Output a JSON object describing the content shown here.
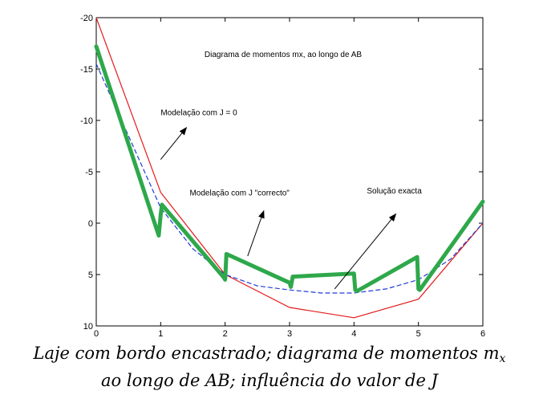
{
  "chart_data": {
    "type": "line",
    "title": "Diagrama de momentos mx, ao longo de AB",
    "xlim": [
      0,
      6
    ],
    "ylim": [
      -20,
      10
    ],
    "y_reversed": true,
    "grid": false,
    "xticks": [
      "0",
      "1",
      "2",
      "3",
      "4",
      "5",
      "6"
    ],
    "yticks": [
      "-20",
      "-15",
      "-10",
      "-5",
      "0",
      "5",
      "10"
    ],
    "series": [
      {
        "name": "Modelação com J = 0",
        "color": "#e41a1c",
        "style": "solid",
        "width": 1.2,
        "x": [
          0,
          1,
          2,
          3,
          4,
          5,
          6
        ],
        "y": [
          -20,
          -3,
          5,
          8.2,
          9.2,
          7.4,
          0
        ]
      },
      {
        "name": "Solução exacta",
        "color": "#1f3bd6",
        "style": "dashed",
        "width": 1.2,
        "x": [
          0,
          0.5,
          1,
          1.5,
          2,
          2.5,
          3,
          3.5,
          4,
          4.5,
          5,
          5.5,
          6
        ],
        "y": [
          -15.5,
          -8.5,
          -1.5,
          2.5,
          5,
          6.1,
          6.5,
          6.8,
          6.8,
          6.4,
          5.5,
          3.5,
          0
        ]
      },
      {
        "name": "Modelação com J \"correcto\"",
        "color": "#2ea84a",
        "style": "solid",
        "width": 5,
        "x": [
          0,
          0.97,
          1.0,
          1.02,
          1.98,
          2.0,
          2.02,
          3.0,
          3.02,
          3.05,
          4.0,
          4.02,
          4.05,
          4.98,
          5.0,
          5.02,
          6.0
        ],
        "y": [
          -17.2,
          1.2,
          -0.8,
          -1.8,
          5.3,
          5.5,
          3.0,
          5.8,
          6.2,
          5.2,
          4.9,
          6.5,
          6.6,
          3.3,
          6.4,
          6.5,
          -2.1
        ]
      }
    ],
    "annotations": [
      {
        "text": "Modelação com J = 0",
        "xy": [
          1.0,
          -10.5
        ],
        "arrow_from": [
          1.0,
          -6.2
        ],
        "arrow_to": [
          1.4,
          -9.3
        ]
      },
      {
        "text": "Modelação com J \"correcto\"",
        "xy": [
          1.45,
          -2.7
        ],
        "arrow_from": [
          2.35,
          3.2
        ],
        "arrow_to": [
          2.6,
          -1.2
        ]
      },
      {
        "text": "Solução exacta",
        "xy": [
          4.2,
          -2.9
        ],
        "arrow_from": [
          3.7,
          6.4
        ],
        "arrow_to": [
          4.65,
          -0.9
        ]
      }
    ]
  },
  "caption": {
    "line1": "Laje com bordo encastrado; diagrama de momentos m",
    "line1_sub": "x",
    "line2": "ao longo de AB;   influência do valor de J"
  }
}
